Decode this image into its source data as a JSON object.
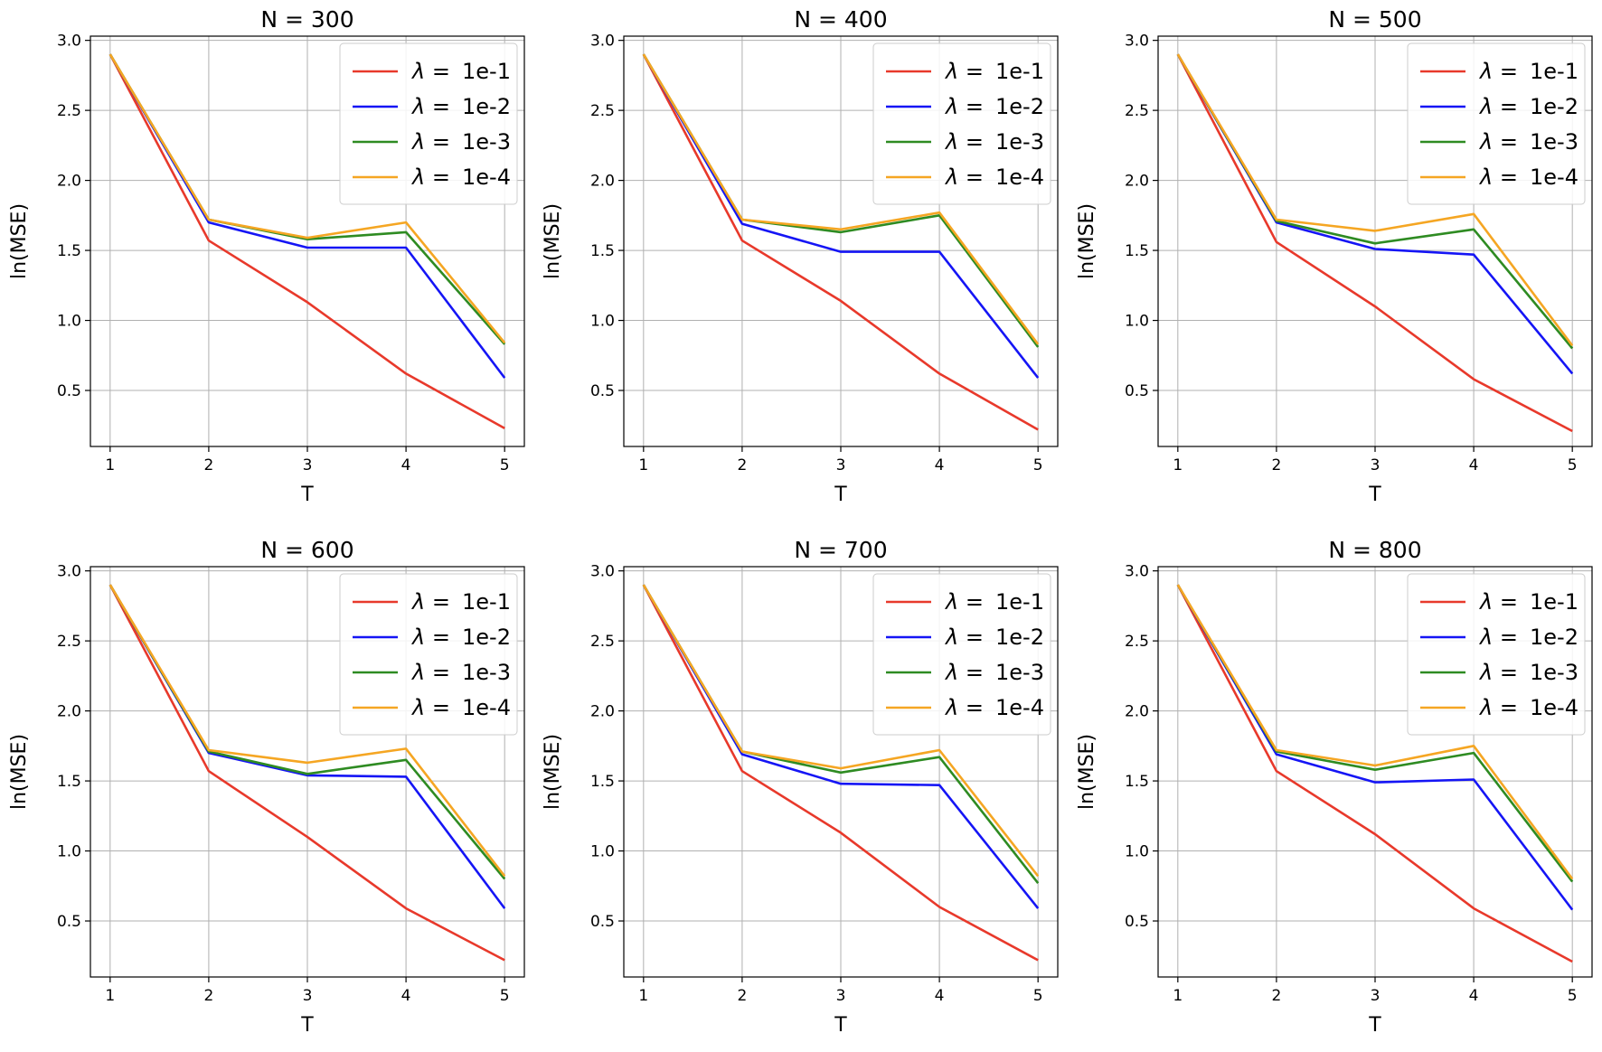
{
  "chart_data": [
    {
      "type": "line",
      "title": "N = 300",
      "xlabel": "T",
      "ylabel": "ln(MSE)",
      "x": [
        1,
        2,
        3,
        4,
        5
      ],
      "xticks": [
        "1",
        "2",
        "3",
        "4",
        "5"
      ],
      "yticks": [
        "0.5",
        "1.0",
        "1.5",
        "2.0",
        "2.5",
        "3.0"
      ],
      "ylim": [
        0.1,
        3.03
      ],
      "grid": true,
      "legend_position": "top-right",
      "series": [
        {
          "name": "1e-1",
          "color": "#e8392b",
          "values": [
            2.9,
            1.57,
            1.13,
            0.62,
            0.23
          ]
        },
        {
          "name": "1e-2",
          "color": "#1515f5",
          "values": [
            2.9,
            1.7,
            1.52,
            1.52,
            0.59
          ]
        },
        {
          "name": "1e-3",
          "color": "#2e8b22",
          "values": [
            2.9,
            1.72,
            1.58,
            1.63,
            0.83
          ]
        },
        {
          "name": "1e-4",
          "color": "#f5a623",
          "values": [
            2.9,
            1.72,
            1.59,
            1.7,
            0.84
          ]
        }
      ]
    },
    {
      "type": "line",
      "title": "N = 400",
      "xlabel": "T",
      "ylabel": "ln(MSE)",
      "x": [
        1,
        2,
        3,
        4,
        5
      ],
      "xticks": [
        "1",
        "2",
        "3",
        "4",
        "5"
      ],
      "yticks": [
        "0.5",
        "1.0",
        "1.5",
        "2.0",
        "2.5",
        "3.0"
      ],
      "ylim": [
        0.1,
        3.03
      ],
      "grid": true,
      "legend_position": "top-right",
      "series": [
        {
          "name": "1e-1",
          "color": "#e8392b",
          "values": [
            2.9,
            1.57,
            1.14,
            0.62,
            0.22
          ]
        },
        {
          "name": "1e-2",
          "color": "#1515f5",
          "values": [
            2.9,
            1.69,
            1.49,
            1.49,
            0.59
          ]
        },
        {
          "name": "1e-3",
          "color": "#2e8b22",
          "values": [
            2.9,
            1.72,
            1.63,
            1.75,
            0.81
          ]
        },
        {
          "name": "1e-4",
          "color": "#f5a623",
          "values": [
            2.9,
            1.72,
            1.65,
            1.77,
            0.83
          ]
        }
      ]
    },
    {
      "type": "line",
      "title": "N = 500",
      "xlabel": "T",
      "ylabel": "ln(MSE)",
      "x": [
        1,
        2,
        3,
        4,
        5
      ],
      "xticks": [
        "1",
        "2",
        "3",
        "4",
        "5"
      ],
      "yticks": [
        "0.5",
        "1.0",
        "1.5",
        "2.0",
        "2.5",
        "3.0"
      ],
      "ylim": [
        0.1,
        3.03
      ],
      "grid": true,
      "legend_position": "top-right",
      "series": [
        {
          "name": "1e-1",
          "color": "#e8392b",
          "values": [
            2.9,
            1.56,
            1.1,
            0.58,
            0.21
          ]
        },
        {
          "name": "1e-2",
          "color": "#1515f5",
          "values": [
            2.9,
            1.7,
            1.51,
            1.47,
            0.62
          ]
        },
        {
          "name": "1e-3",
          "color": "#2e8b22",
          "values": [
            2.9,
            1.71,
            1.55,
            1.65,
            0.8
          ]
        },
        {
          "name": "1e-4",
          "color": "#f5a623",
          "values": [
            2.9,
            1.72,
            1.64,
            1.76,
            0.82
          ]
        }
      ]
    },
    {
      "type": "line",
      "title": "N = 600",
      "xlabel": "T",
      "ylabel": "ln(MSE)",
      "x": [
        1,
        2,
        3,
        4,
        5
      ],
      "xticks": [
        "1",
        "2",
        "3",
        "4",
        "5"
      ],
      "yticks": [
        "0.5",
        "1.0",
        "1.5",
        "2.0",
        "2.5",
        "3.0"
      ],
      "ylim": [
        0.1,
        3.03
      ],
      "grid": true,
      "legend_position": "top-right",
      "series": [
        {
          "name": "1e-1",
          "color": "#e8392b",
          "values": [
            2.9,
            1.57,
            1.1,
            0.59,
            0.22
          ]
        },
        {
          "name": "1e-2",
          "color": "#1515f5",
          "values": [
            2.9,
            1.7,
            1.54,
            1.53,
            0.59
          ]
        },
        {
          "name": "1e-3",
          "color": "#2e8b22",
          "values": [
            2.9,
            1.71,
            1.55,
            1.65,
            0.8
          ]
        },
        {
          "name": "1e-4",
          "color": "#f5a623",
          "values": [
            2.9,
            1.72,
            1.63,
            1.73,
            0.82
          ]
        }
      ]
    },
    {
      "type": "line",
      "title": "N = 700",
      "xlabel": "T",
      "ylabel": "ln(MSE)",
      "x": [
        1,
        2,
        3,
        4,
        5
      ],
      "xticks": [
        "1",
        "2",
        "3",
        "4",
        "5"
      ],
      "yticks": [
        "0.5",
        "1.0",
        "1.5",
        "2.0",
        "2.5",
        "3.0"
      ],
      "ylim": [
        0.1,
        3.03
      ],
      "grid": true,
      "legend_position": "top-right",
      "series": [
        {
          "name": "1e-1",
          "color": "#e8392b",
          "values": [
            2.9,
            1.57,
            1.13,
            0.6,
            0.22
          ]
        },
        {
          "name": "1e-2",
          "color": "#1515f5",
          "values": [
            2.9,
            1.69,
            1.48,
            1.47,
            0.59
          ]
        },
        {
          "name": "1e-3",
          "color": "#2e8b22",
          "values": [
            2.9,
            1.71,
            1.56,
            1.67,
            0.77
          ]
        },
        {
          "name": "1e-4",
          "color": "#f5a623",
          "values": [
            2.9,
            1.71,
            1.59,
            1.72,
            0.82
          ]
        }
      ]
    },
    {
      "type": "line",
      "title": "N = 800",
      "xlabel": "T",
      "ylabel": "ln(MSE)",
      "x": [
        1,
        2,
        3,
        4,
        5
      ],
      "xticks": [
        "1",
        "2",
        "3",
        "4",
        "5"
      ],
      "yticks": [
        "0.5",
        "1.0",
        "1.5",
        "2.0",
        "2.5",
        "3.0"
      ],
      "ylim": [
        0.1,
        3.03
      ],
      "grid": true,
      "legend_position": "top-right",
      "series": [
        {
          "name": "1e-1",
          "color": "#e8392b",
          "values": [
            2.9,
            1.57,
            1.12,
            0.59,
            0.21
          ]
        },
        {
          "name": "1e-2",
          "color": "#1515f5",
          "values": [
            2.9,
            1.69,
            1.49,
            1.51,
            0.58
          ]
        },
        {
          "name": "1e-3",
          "color": "#2e8b22",
          "values": [
            2.9,
            1.71,
            1.58,
            1.7,
            0.78
          ]
        },
        {
          "name": "1e-4",
          "color": "#f5a623",
          "values": [
            2.9,
            1.72,
            1.61,
            1.75,
            0.8
          ]
        }
      ]
    }
  ]
}
